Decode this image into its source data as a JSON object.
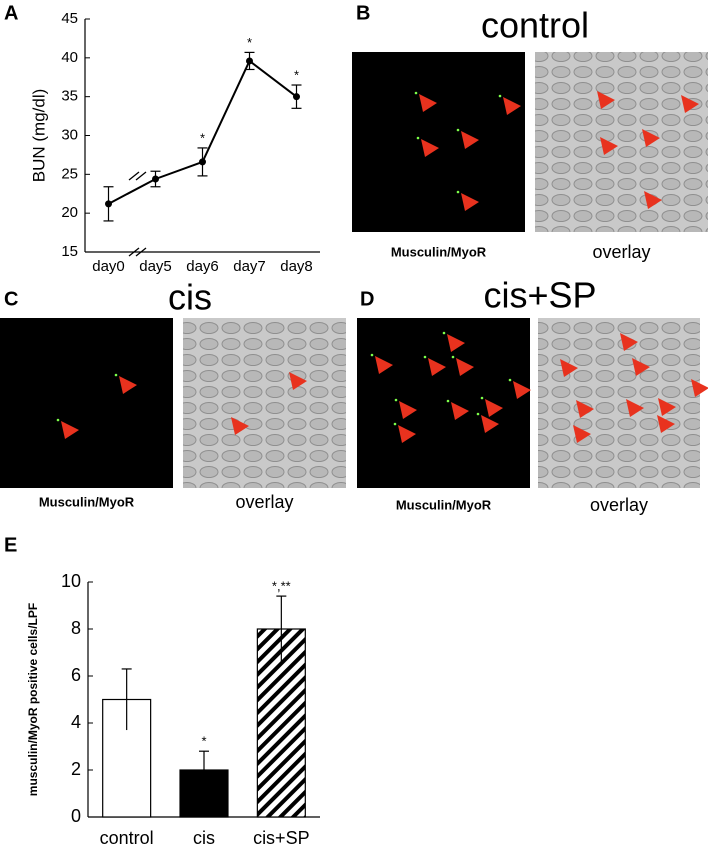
{
  "chart_data": [
    {
      "type": "line",
      "panel": "A",
      "y_label": "BUN (mg/dl)",
      "categories": [
        "day0",
        "day5",
        "day6",
        "day7",
        "day8"
      ],
      "values": [
        21.2,
        24.4,
        26.6,
        39.6,
        35.0
      ],
      "errors": [
        2.2,
        1.0,
        1.8,
        1.1,
        1.5
      ],
      "annotations": [
        null,
        null,
        "*",
        "*",
        "*"
      ],
      "color": "#000000",
      "ylim": [
        15,
        45
      ],
      "yticks": [
        15,
        20,
        25,
        30,
        35,
        40,
        45
      ]
    },
    {
      "type": "bar",
      "panel": "E",
      "y_label": "musculin/MyoR positive cells/LPF",
      "categories": [
        "control",
        "cis",
        "cis+SP"
      ],
      "values": [
        5,
        2,
        8
      ],
      "errors": [
        1.3,
        0.8,
        1.4
      ],
      "annotations": [
        null,
        "*",
        "*,**"
      ],
      "colors": [
        "#ffffff",
        "#000000",
        "#000000"
      ],
      "fill_styles": [
        "solid",
        "solid",
        "hatched"
      ],
      "ylim": [
        0,
        10
      ],
      "yticks": [
        0,
        2,
        4,
        6,
        8,
        10
      ]
    }
  ],
  "image_panels": [
    {
      "panel": "B",
      "title": "control",
      "captions": [
        "Musculin/MyoR",
        "overlay"
      ]
    },
    {
      "panel": "C",
      "title": "cis",
      "captions": [
        "Musculin/MyoR",
        "overlay"
      ]
    },
    {
      "panel": "D",
      "title": "cis+SP",
      "captions": [
        "Musculin/MyoR",
        "overlay"
      ]
    }
  ]
}
